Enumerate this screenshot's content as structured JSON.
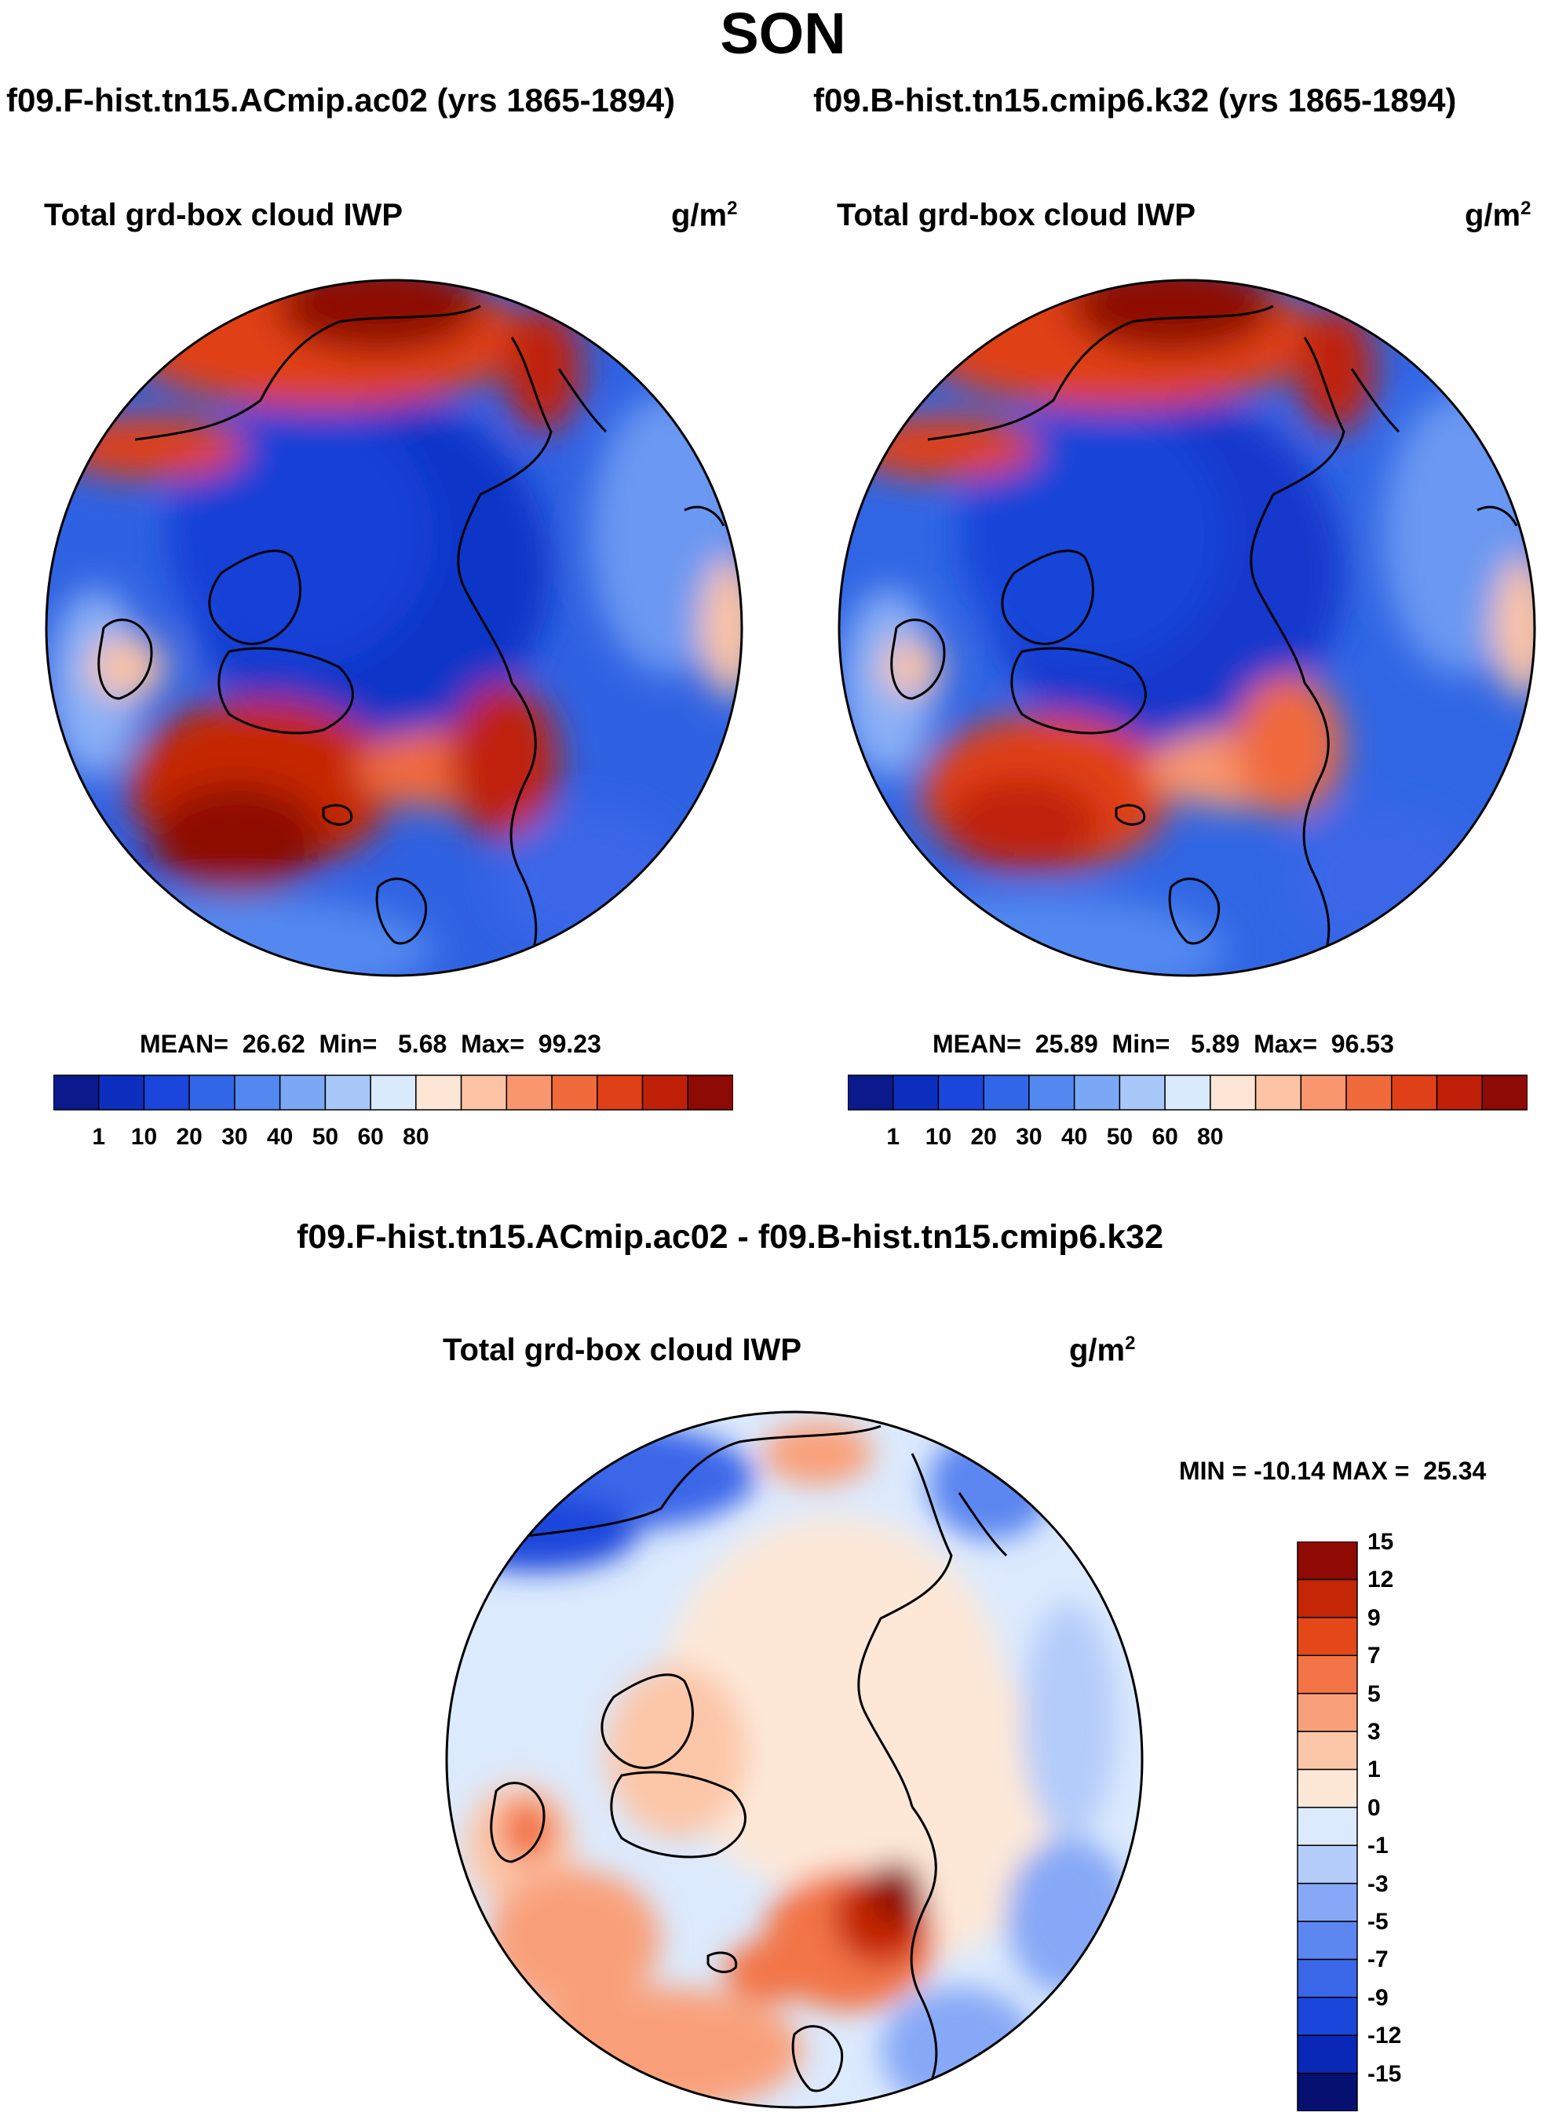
{
  "season_title": "SON",
  "left_panel": {
    "case_title": "f09.F-hist.tn15.ACmip.ac02 (yrs 1865-1894)",
    "var_title": "Total grd-box cloud IWP",
    "units_base": "g/m",
    "units_exp": "2",
    "stats": "MEAN=  26.62  Min=   5.68  Max=  99.23"
  },
  "right_panel": {
    "case_title": "f09.B-hist.tn15.cmip6.k32 (yrs 1865-1894)",
    "var_title": "Total grd-box cloud IWP",
    "units_base": "g/m",
    "units_exp": "2",
    "stats": "MEAN=  25.89  Min=   5.89  Max=  96.53"
  },
  "diff_panel": {
    "title": "f09.F-hist.tn15.ACmip.ac02 - f09.B-hist.tn15.cmip6.k32",
    "var_title": "Total grd-box cloud IWP",
    "units_base": "g/m",
    "units_exp": "2",
    "minmax": "MIN = -10.14 MAX =  25.34"
  },
  "abs_colorbar": {
    "colors": [
      "#0a1a8c",
      "#0d2fc0",
      "#1a46dc",
      "#3266e8",
      "#5288f0",
      "#7aa8f5",
      "#a8c8fa",
      "#d8eafc",
      "#fde6d6",
      "#fcc4a4",
      "#f9966e",
      "#f06a3c",
      "#e04018",
      "#c02008",
      "#8e0a04"
    ],
    "tick_labels": [
      "1",
      "10",
      "20",
      "30",
      "40",
      "50",
      "60",
      "80"
    ]
  },
  "diff_colorbar": {
    "colors": [
      "#061070",
      "#0a28b8",
      "#1a46dc",
      "#3a66e8",
      "#5c86f0",
      "#86a8f6",
      "#b4ccfa",
      "#dceafd",
      "#fde8d8",
      "#fcc6a8",
      "#f9a07a",
      "#f27446",
      "#e44818",
      "#c42606",
      "#900a04"
    ],
    "tick_labels": [
      "-15",
      "-12",
      "-9",
      "-7",
      "-5",
      "-3",
      "-1",
      "0",
      "1",
      "3",
      "5",
      "7",
      "9",
      "12",
      "15"
    ]
  },
  "colors": {
    "land_outline": "#000000",
    "ocean_base": "#2d5fe0"
  }
}
